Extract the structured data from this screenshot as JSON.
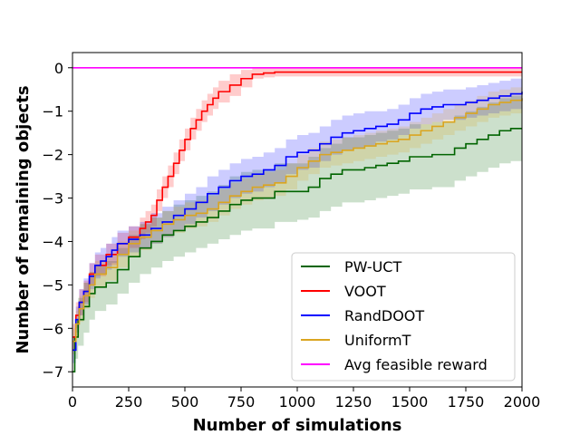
{
  "chart_data": {
    "type": "line",
    "title": "",
    "xlabel": "Number of simulations",
    "ylabel": "Number of remaining objects",
    "xlim": [
      0,
      2000
    ],
    "ylim": [
      -7.35,
      0.35
    ],
    "xticks": [
      "0",
      "250",
      "500",
      "750",
      "1000",
      "1250",
      "1500",
      "1750",
      "2000"
    ],
    "yticks": [
      "0",
      "−1",
      "−2",
      "−3",
      "−4",
      "−5",
      "−6",
      "−7"
    ],
    "legend_position": "lower-right",
    "grid": false,
    "series": [
      {
        "name": "PW-UCT",
        "color": "#006400",
        "step": true,
        "x": [
          0,
          10,
          25,
          50,
          75,
          100,
          150,
          200,
          250,
          300,
          350,
          400,
          450,
          500,
          550,
          600,
          650,
          700,
          750,
          800,
          900,
          1000,
          1050,
          1100,
          1150,
          1200,
          1300,
          1350,
          1400,
          1450,
          1500,
          1600,
          1700,
          1750,
          1800,
          1850,
          1900,
          1950,
          2000
        ],
        "y": [
          -7.0,
          -6.2,
          -5.8,
          -5.5,
          -5.2,
          -5.05,
          -4.95,
          -4.65,
          -4.35,
          -4.15,
          -4.0,
          -3.85,
          -3.75,
          -3.65,
          -3.55,
          -3.45,
          -3.3,
          -3.15,
          -3.05,
          -3.0,
          -2.85,
          -2.85,
          -2.75,
          -2.55,
          -2.45,
          -2.35,
          -2.3,
          -2.25,
          -2.2,
          -2.15,
          -2.05,
          -2.0,
          -1.85,
          -1.75,
          -1.65,
          -1.55,
          -1.45,
          -1.4,
          -1.4
        ],
        "lower": [
          -7.0,
          -6.7,
          -6.4,
          -6.1,
          -5.8,
          -5.6,
          -5.45,
          -5.2,
          -4.95,
          -4.75,
          -4.6,
          -4.45,
          -4.35,
          -4.25,
          -4.15,
          -4.05,
          -3.95,
          -3.85,
          -3.75,
          -3.7,
          -3.55,
          -3.5,
          -3.45,
          -3.3,
          -3.2,
          -3.1,
          -3.05,
          -3.0,
          -2.95,
          -2.9,
          -2.8,
          -2.75,
          -2.6,
          -2.5,
          -2.4,
          -2.3,
          -2.2,
          -2.15,
          -2.15
        ],
        "upper": [
          -7.0,
          -5.8,
          -5.3,
          -4.95,
          -4.7,
          -4.55,
          -4.45,
          -4.15,
          -3.85,
          -3.6,
          -3.45,
          -3.3,
          -3.15,
          -3.05,
          -2.95,
          -2.85,
          -2.7,
          -2.5,
          -2.4,
          -2.35,
          -2.2,
          -2.2,
          -2.05,
          -1.85,
          -1.75,
          -1.6,
          -1.55,
          -1.5,
          -1.45,
          -1.4,
          -1.3,
          -1.25,
          -1.1,
          -1.0,
          -0.9,
          -0.8,
          -0.7,
          -0.65,
          -0.65
        ]
      },
      {
        "name": "VOOT",
        "color": "#ff0000",
        "step": true,
        "x": [
          0,
          15,
          30,
          50,
          75,
          100,
          150,
          200,
          250,
          300,
          325,
          350,
          375,
          400,
          425,
          450,
          475,
          500,
          525,
          550,
          575,
          600,
          625,
          650,
          700,
          750,
          800,
          850,
          900,
          950,
          1000,
          1500,
          2000
        ],
        "y": [
          -6.2,
          -5.7,
          -5.4,
          -5.15,
          -4.75,
          -4.55,
          -4.3,
          -4.05,
          -3.9,
          -3.7,
          -3.55,
          -3.4,
          -3.05,
          -2.75,
          -2.5,
          -2.2,
          -1.9,
          -1.65,
          -1.4,
          -1.2,
          -1.0,
          -0.85,
          -0.7,
          -0.55,
          -0.4,
          -0.25,
          -0.15,
          -0.12,
          -0.1,
          -0.1,
          -0.1,
          -0.1,
          -0.1
        ],
        "lower": [
          -6.5,
          -6.0,
          -5.7,
          -5.4,
          -5.0,
          -4.8,
          -4.55,
          -4.3,
          -4.15,
          -3.95,
          -3.8,
          -3.65,
          -3.3,
          -3.0,
          -2.75,
          -2.45,
          -2.15,
          -1.9,
          -1.65,
          -1.45,
          -1.25,
          -1.1,
          -0.95,
          -0.8,
          -0.65,
          -0.45,
          -0.25,
          -0.22,
          -0.2,
          -0.2,
          -0.2,
          -0.2,
          -0.2
        ],
        "upper": [
          -5.9,
          -5.4,
          -5.1,
          -4.9,
          -4.5,
          -4.3,
          -4.05,
          -3.8,
          -3.65,
          -3.45,
          -3.3,
          -3.15,
          -2.8,
          -2.5,
          -2.25,
          -1.95,
          -1.65,
          -1.4,
          -1.15,
          -0.95,
          -0.75,
          -0.6,
          -0.45,
          -0.3,
          -0.15,
          -0.05,
          0.0,
          0.0,
          0.0,
          0.0,
          0.0,
          0.0,
          0.0
        ]
      },
      {
        "name": "RandDOOT",
        "color": "#0000ff",
        "step": true,
        "x": [
          0,
          15,
          30,
          50,
          75,
          100,
          125,
          150,
          175,
          200,
          250,
          300,
          350,
          400,
          450,
          500,
          550,
          600,
          650,
          700,
          750,
          800,
          850,
          900,
          950,
          1000,
          1050,
          1100,
          1150,
          1200,
          1250,
          1300,
          1350,
          1400,
          1450,
          1500,
          1550,
          1600,
          1650,
          1700,
          1750,
          1800,
          1850,
          1900,
          1950,
          2000
        ],
        "y": [
          -6.5,
          -5.8,
          -5.4,
          -5.15,
          -4.8,
          -4.55,
          -4.45,
          -4.35,
          -4.2,
          -4.05,
          -3.95,
          -3.85,
          -3.7,
          -3.55,
          -3.4,
          -3.25,
          -3.1,
          -2.9,
          -2.75,
          -2.6,
          -2.5,
          -2.45,
          -2.35,
          -2.25,
          -2.05,
          -1.95,
          -1.9,
          -1.75,
          -1.6,
          -1.5,
          -1.45,
          -1.4,
          -1.35,
          -1.3,
          -1.2,
          -1.05,
          -0.95,
          -0.9,
          -0.85,
          -0.85,
          -0.8,
          -0.75,
          -0.7,
          -0.65,
          -0.6,
          -0.55
        ],
        "lower": [
          -6.8,
          -6.1,
          -5.7,
          -5.45,
          -5.1,
          -4.85,
          -4.75,
          -4.65,
          -4.5,
          -4.35,
          -4.25,
          -4.15,
          -4.05,
          -3.9,
          -3.75,
          -3.6,
          -3.45,
          -3.3,
          -3.15,
          -3.0,
          -2.9,
          -2.85,
          -2.75,
          -2.65,
          -2.45,
          -2.35,
          -2.3,
          -2.15,
          -2.0,
          -1.9,
          -1.85,
          -1.8,
          -1.7,
          -1.65,
          -1.55,
          -1.4,
          -1.3,
          -1.25,
          -1.2,
          -1.2,
          -1.15,
          -1.1,
          -1.05,
          -1.0,
          -0.95,
          -0.9
        ],
        "upper": [
          -6.2,
          -5.5,
          -5.1,
          -4.85,
          -4.5,
          -4.25,
          -4.15,
          -4.05,
          -3.9,
          -3.75,
          -3.65,
          -3.55,
          -3.35,
          -3.2,
          -3.05,
          -2.9,
          -2.75,
          -2.5,
          -2.35,
          -2.2,
          -2.1,
          -2.05,
          -1.95,
          -1.85,
          -1.65,
          -1.55,
          -1.5,
          -1.35,
          -1.2,
          -1.1,
          -1.05,
          -1.0,
          -1.0,
          -0.95,
          -0.85,
          -0.7,
          -0.6,
          -0.55,
          -0.5,
          -0.5,
          -0.45,
          -0.4,
          -0.35,
          -0.3,
          -0.25,
          -0.2
        ]
      },
      {
        "name": "UniformT",
        "color": "#daa520",
        "step": true,
        "x": [
          0,
          15,
          30,
          50,
          75,
          100,
          150,
          200,
          250,
          300,
          350,
          400,
          450,
          500,
          550,
          600,
          650,
          700,
          750,
          800,
          850,
          900,
          950,
          1000,
          1050,
          1100,
          1150,
          1200,
          1250,
          1300,
          1350,
          1400,
          1450,
          1500,
          1550,
          1600,
          1650,
          1700,
          1750,
          1800,
          1850,
          1900,
          1950,
          2000
        ],
        "y": [
          -6.3,
          -5.9,
          -5.55,
          -5.25,
          -5.0,
          -4.75,
          -4.6,
          -4.3,
          -4.05,
          -3.9,
          -3.75,
          -3.6,
          -3.5,
          -3.4,
          -3.35,
          -3.25,
          -3.1,
          -2.95,
          -2.85,
          -2.75,
          -2.7,
          -2.65,
          -2.5,
          -2.3,
          -2.15,
          -2.0,
          -1.95,
          -1.9,
          -1.85,
          -1.8,
          -1.75,
          -1.7,
          -1.65,
          -1.55,
          -1.45,
          -1.35,
          -1.25,
          -1.15,
          -1.05,
          -0.95,
          -0.85,
          -0.8,
          -0.75,
          -0.7
        ],
        "lower": [
          -6.6,
          -6.2,
          -5.85,
          -5.55,
          -5.3,
          -5.05,
          -4.9,
          -4.6,
          -4.35,
          -4.2,
          -4.05,
          -3.9,
          -3.8,
          -3.7,
          -3.65,
          -3.55,
          -3.4,
          -3.25,
          -3.15,
          -3.05,
          -3.0,
          -2.95,
          -2.8,
          -2.6,
          -2.45,
          -2.3,
          -2.25,
          -2.2,
          -2.15,
          -2.1,
          -2.05,
          -2.0,
          -1.95,
          -1.85,
          -1.75,
          -1.65,
          -1.55,
          -1.45,
          -1.35,
          -1.25,
          -1.15,
          -1.1,
          -1.05,
          -1.0
        ],
        "upper": [
          -6.0,
          -5.6,
          -5.25,
          -4.95,
          -4.7,
          -4.45,
          -4.3,
          -4.0,
          -3.75,
          -3.6,
          -3.45,
          -3.3,
          -3.2,
          -3.1,
          -3.05,
          -2.95,
          -2.8,
          -2.65,
          -2.55,
          -2.45,
          -2.4,
          -2.35,
          -2.2,
          -2.0,
          -1.85,
          -1.7,
          -1.65,
          -1.6,
          -1.55,
          -1.5,
          -1.45,
          -1.4,
          -1.35,
          -1.25,
          -1.15,
          -1.05,
          -0.95,
          -0.85,
          -0.75,
          -0.65,
          -0.55,
          -0.5,
          -0.45,
          -0.4
        ]
      },
      {
        "name": "Avg feasible reward",
        "color": "#ff00ff",
        "step": false,
        "x": [
          0,
          2000
        ],
        "y": [
          0,
          0
        ]
      }
    ]
  }
}
